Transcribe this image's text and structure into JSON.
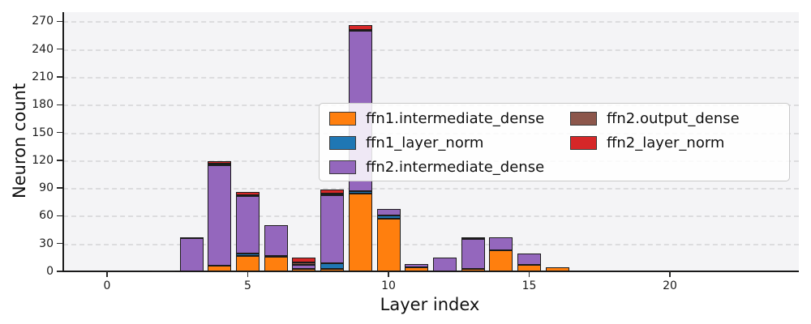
{
  "figure": {
    "xlabel": "Layer index",
    "ylabel": "Neuron count"
  },
  "colors": {
    "plot_background": "#f4f4f6",
    "figure_background": "#ffffff",
    "grid": "#dcdcde",
    "bar_edge": "#1c1c1c",
    "axis": "#1a1a1a"
  },
  "chart_data": {
    "type": "bar",
    "stacked": true,
    "title": "",
    "xlabel": "Layer index",
    "ylabel": "Neuron count",
    "x": [
      0,
      1,
      2,
      3,
      4,
      5,
      6,
      7,
      8,
      9,
      10,
      11,
      12,
      13,
      14,
      15,
      16,
      17,
      18,
      19,
      20,
      21,
      22,
      23
    ],
    "xticks": [
      0,
      5,
      10,
      15,
      20
    ],
    "yticks": [
      0,
      30,
      60,
      90,
      120,
      150,
      180,
      210,
      240,
      270
    ],
    "xlim": [
      -1.6,
      24.6
    ],
    "ylim": [
      0,
      280
    ],
    "grid": "horizontal-dashed",
    "legend_position": "upper-center-right-2-columns",
    "series": [
      {
        "name": "ffn1.intermediate_dense",
        "color": "#ff7f0e",
        "values": [
          0,
          0,
          0,
          0,
          6,
          17,
          16,
          3,
          3,
          84,
          57,
          4,
          0,
          3,
          23,
          7,
          4,
          0,
          0,
          0,
          0,
          0,
          0,
          0
        ]
      },
      {
        "name": "ffn1_layer_norm",
        "color": "#1f77b4",
        "values": [
          0,
          0,
          0,
          0,
          0,
          2,
          1,
          0,
          6,
          3,
          3,
          0,
          0,
          0,
          0,
          0,
          0,
          0,
          0,
          0,
          0,
          0,
          0,
          0
        ]
      },
      {
        "name": "ffn2.intermediate_dense",
        "color": "#9467bd",
        "values": [
          0,
          0,
          1,
          36,
          109,
          62,
          33,
          4,
          73,
          173,
          7,
          4,
          15,
          32,
          14,
          12,
          0,
          0,
          0,
          0,
          0,
          0,
          0,
          0
        ]
      },
      {
        "name": "ffn2.output_dense",
        "color": "#8c564b",
        "values": [
          0,
          0,
          0,
          1,
          1,
          1,
          0,
          3,
          2,
          1,
          0,
          0,
          0,
          2,
          0,
          0,
          0,
          0,
          0,
          0,
          0,
          0,
          0,
          0
        ]
      },
      {
        "name": "ffn2_layer_norm",
        "color": "#d62728",
        "values": [
          0,
          0,
          0,
          0,
          3,
          4,
          0,
          5,
          4,
          5,
          0,
          0,
          0,
          0,
          0,
          0,
          0,
          0,
          0,
          0,
          0,
          0,
          0,
          0
        ]
      }
    ],
    "legend_columns": [
      [
        "ffn1.intermediate_dense",
        "ffn1_layer_norm",
        "ffn2.intermediate_dense"
      ],
      [
        "ffn2.output_dense",
        "ffn2_layer_norm"
      ]
    ]
  }
}
